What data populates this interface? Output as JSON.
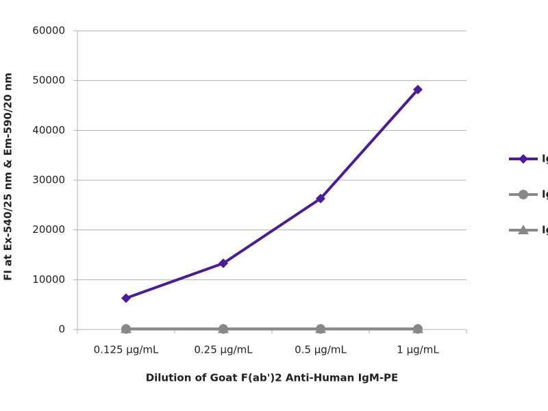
{
  "chart_data": {
    "type": "line",
    "x_label": "Dilution of Goat F(ab')2 Anti-Human IgM-PE",
    "y_label": "FI at Ex-540/25 nm & Em-590/20 nm",
    "categories": [
      "0.125 µg/mL",
      "0.25 µg/mL",
      "0.5 µg/mL",
      "1 µg/mL"
    ],
    "series": [
      {
        "name": "IgM",
        "color": "#4b1a9e",
        "marker": "diamond",
        "values": [
          6300,
          13300,
          26300,
          48200
        ]
      },
      {
        "name": "IgG",
        "color": "#888888",
        "marker": "circle",
        "values": [
          100,
          100,
          100,
          100
        ]
      },
      {
        "name": "IgA",
        "color": "#888888",
        "marker": "triangle",
        "values": [
          100,
          100,
          100,
          100
        ]
      }
    ],
    "ylim": [
      0,
      60000
    ],
    "yticks": [
      0,
      10000,
      20000,
      30000,
      40000,
      50000,
      60000
    ],
    "grid": true,
    "legend": "right"
  }
}
